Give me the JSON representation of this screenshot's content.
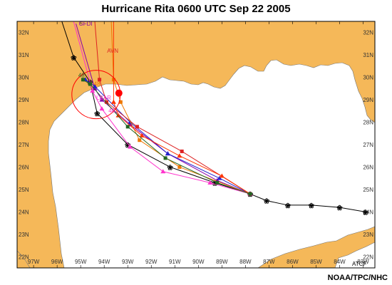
{
  "title": "Hurricane Rita 0600 UTC  Sep 22 2005",
  "credit": "NOAA/TPC/NHC",
  "corner_label": "ATCF",
  "colors": {
    "water": "#ffffff",
    "land": "#f5b859",
    "frame": "#000000"
  },
  "axes": {
    "lon_ticks": [
      "97W",
      "96W",
      "95W",
      "94W",
      "93W",
      "92W",
      "91W",
      "90W",
      "89W",
      "88W",
      "87W",
      "86W",
      "85W",
      "84W",
      "83W"
    ],
    "lat_ticks": [
      "32N",
      "31N",
      "30N",
      "29N",
      "28N",
      "27N",
      "26N",
      "25N",
      "24N",
      "23N",
      "22N"
    ],
    "lon_range": [
      -97.7,
      -82.5
    ],
    "lat_range": [
      21.5,
      32.5
    ]
  },
  "model_labels": {
    "gfdi": "GFDI",
    "avn": "AVN",
    "lbar": "LBAR",
    "hr48_a": "48",
    "hr48_b": "48",
    "hr48_c": "48"
  },
  "tracks": [
    {
      "id": "best-track",
      "color": "#000000",
      "points": [
        [
          -82.9,
          24.0
        ],
        [
          -84.0,
          24.2
        ],
        [
          -85.2,
          24.3
        ],
        [
          -86.2,
          24.3
        ],
        [
          -87.1,
          24.5
        ],
        [
          -87.8,
          24.8
        ],
        [
          -89.3,
          25.3
        ],
        [
          -91.2,
          26.0
        ],
        [
          -93.0,
          27.0
        ],
        [
          -94.3,
          28.4
        ],
        [
          -94.6,
          29.8
        ],
        [
          -95.3,
          30.9
        ],
        [
          -95.8,
          32.5
        ]
      ]
    },
    {
      "id": "model-gfdi",
      "color": "#8800aa",
      "points": [
        [
          -87.8,
          24.8
        ],
        [
          -89.2,
          25.4
        ],
        [
          -91.3,
          26.6
        ],
        [
          -92.9,
          27.9
        ],
        [
          -94.1,
          29.0
        ],
        [
          -94.4,
          29.5
        ],
        [
          -95.2,
          32.4
        ]
      ]
    },
    {
      "id": "model-blue",
      "color": "#2222cc",
      "points": [
        [
          -87.8,
          24.8
        ],
        [
          -89.1,
          25.5
        ],
        [
          -91.3,
          26.6
        ],
        [
          -92.9,
          28.0
        ],
        [
          -94.4,
          29.6
        ],
        [
          -94.8,
          29.9
        ]
      ]
    },
    {
      "id": "model-avn",
      "color": "#dd2222",
      "points": [
        [
          -87.8,
          24.8
        ],
        [
          -90.7,
          26.7
        ],
        [
          -92.6,
          27.8
        ],
        [
          -93.9,
          28.9
        ],
        [
          -94.2,
          29.9
        ],
        [
          -94.4,
          32.5
        ]
      ]
    },
    {
      "id": "model-orange",
      "color": "#ee7700",
      "points": [
        [
          -87.8,
          24.8
        ],
        [
          -90.8,
          26.0
        ],
        [
          -92.5,
          27.2
        ],
        [
          -93.3,
          28.9
        ],
        [
          -93.6,
          29.9
        ],
        [
          -93.7,
          32.5
        ]
      ]
    },
    {
      "id": "model-red2",
      "color": "#ff3300",
      "points": [
        [
          -87.8,
          24.8
        ],
        [
          -89.0,
          25.6
        ],
        [
          -90.8,
          26.5
        ],
        [
          -92.4,
          27.4
        ],
        [
          -93.4,
          28.3
        ],
        [
          -93.6,
          28.9
        ],
        [
          -93.6,
          32.5
        ]
      ]
    },
    {
      "id": "model-lbar",
      "color": "#ff33cc",
      "points": [
        [
          -87.8,
          24.8
        ],
        [
          -89.5,
          25.3
        ],
        [
          -91.5,
          25.8
        ],
        [
          -92.9,
          26.9
        ],
        [
          -94.1,
          28.6
        ],
        [
          -94.5,
          29.4
        ],
        [
          -95.3,
          32.5
        ]
      ]
    },
    {
      "id": "model-green",
      "color": "#226622",
      "points": [
        [
          -87.8,
          24.8
        ],
        [
          -89.2,
          25.3
        ],
        [
          -91.4,
          26.4
        ],
        [
          -93.0,
          27.8
        ],
        [
          -94.6,
          29.7
        ],
        [
          -94.9,
          29.9
        ]
      ]
    }
  ],
  "storm": {
    "center": [
      -93.8,
      29.3
    ],
    "color": "#ff0000"
  }
}
